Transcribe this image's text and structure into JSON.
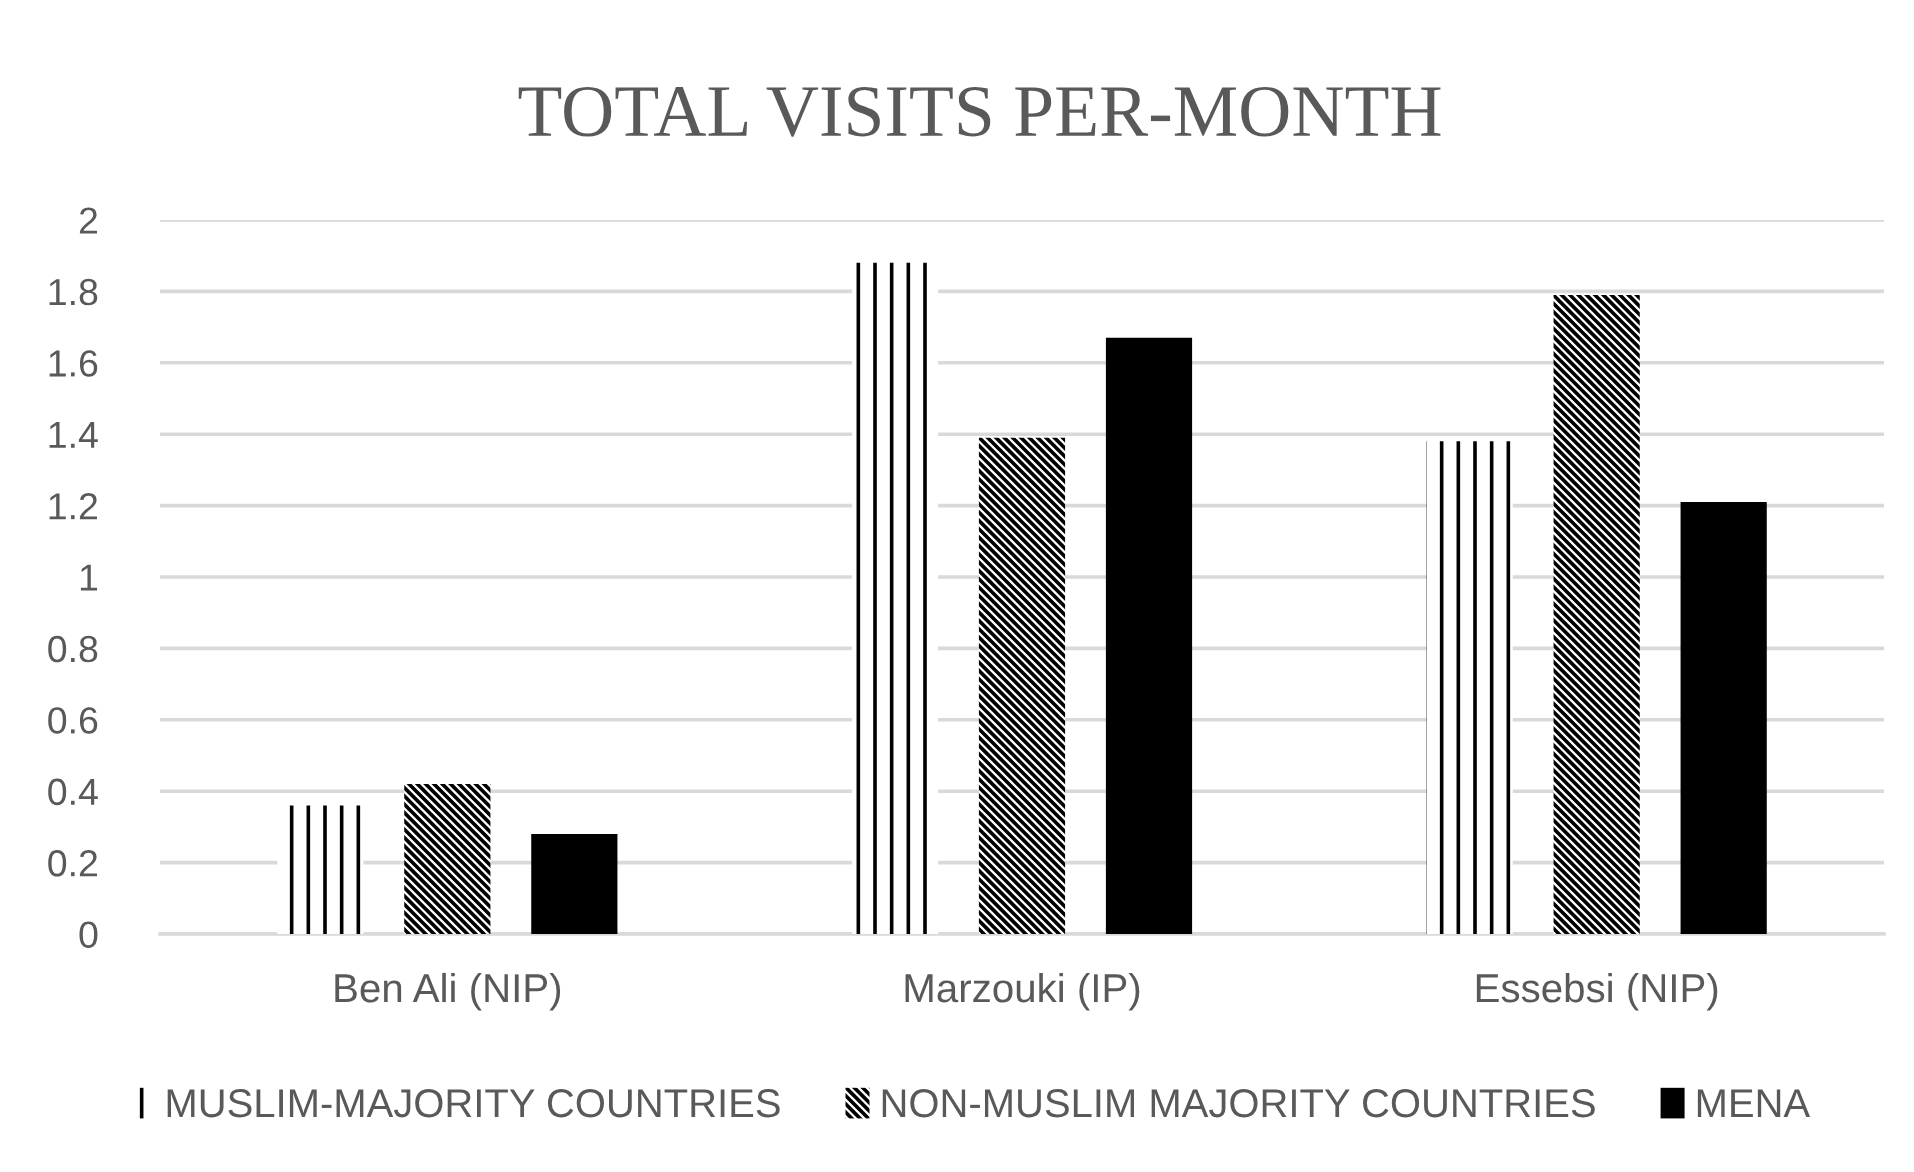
{
  "chart_data": {
    "type": "bar",
    "title": "TOTAL VISITS PER-MONTH",
    "categories": [
      "Ben Ali (NIP)",
      "Marzouki (IP)",
      "Essebsi (NIP)"
    ],
    "series": [
      {
        "name": "MUSLIM-MAJORITY COUNTRIES",
        "color": "#000000",
        "values": [
          0.36,
          1.88,
          1.38
        ]
      },
      {
        "name": "NON-MUSLIM MAJORITY COUNTRIES",
        "color": "#000000",
        "values": [
          0.42,
          1.39,
          1.79
        ]
      },
      {
        "name": "MENA",
        "color": "#000000",
        "values": [
          0.28,
          1.67,
          1.21
        ]
      }
    ],
    "ylim": [
      0,
      2
    ],
    "yticks": [
      0,
      0.2,
      0.4,
      0.6,
      0.8,
      1,
      1.2,
      1.4,
      1.6,
      1.8,
      2
    ],
    "grid": "y",
    "legend": "bottom"
  }
}
